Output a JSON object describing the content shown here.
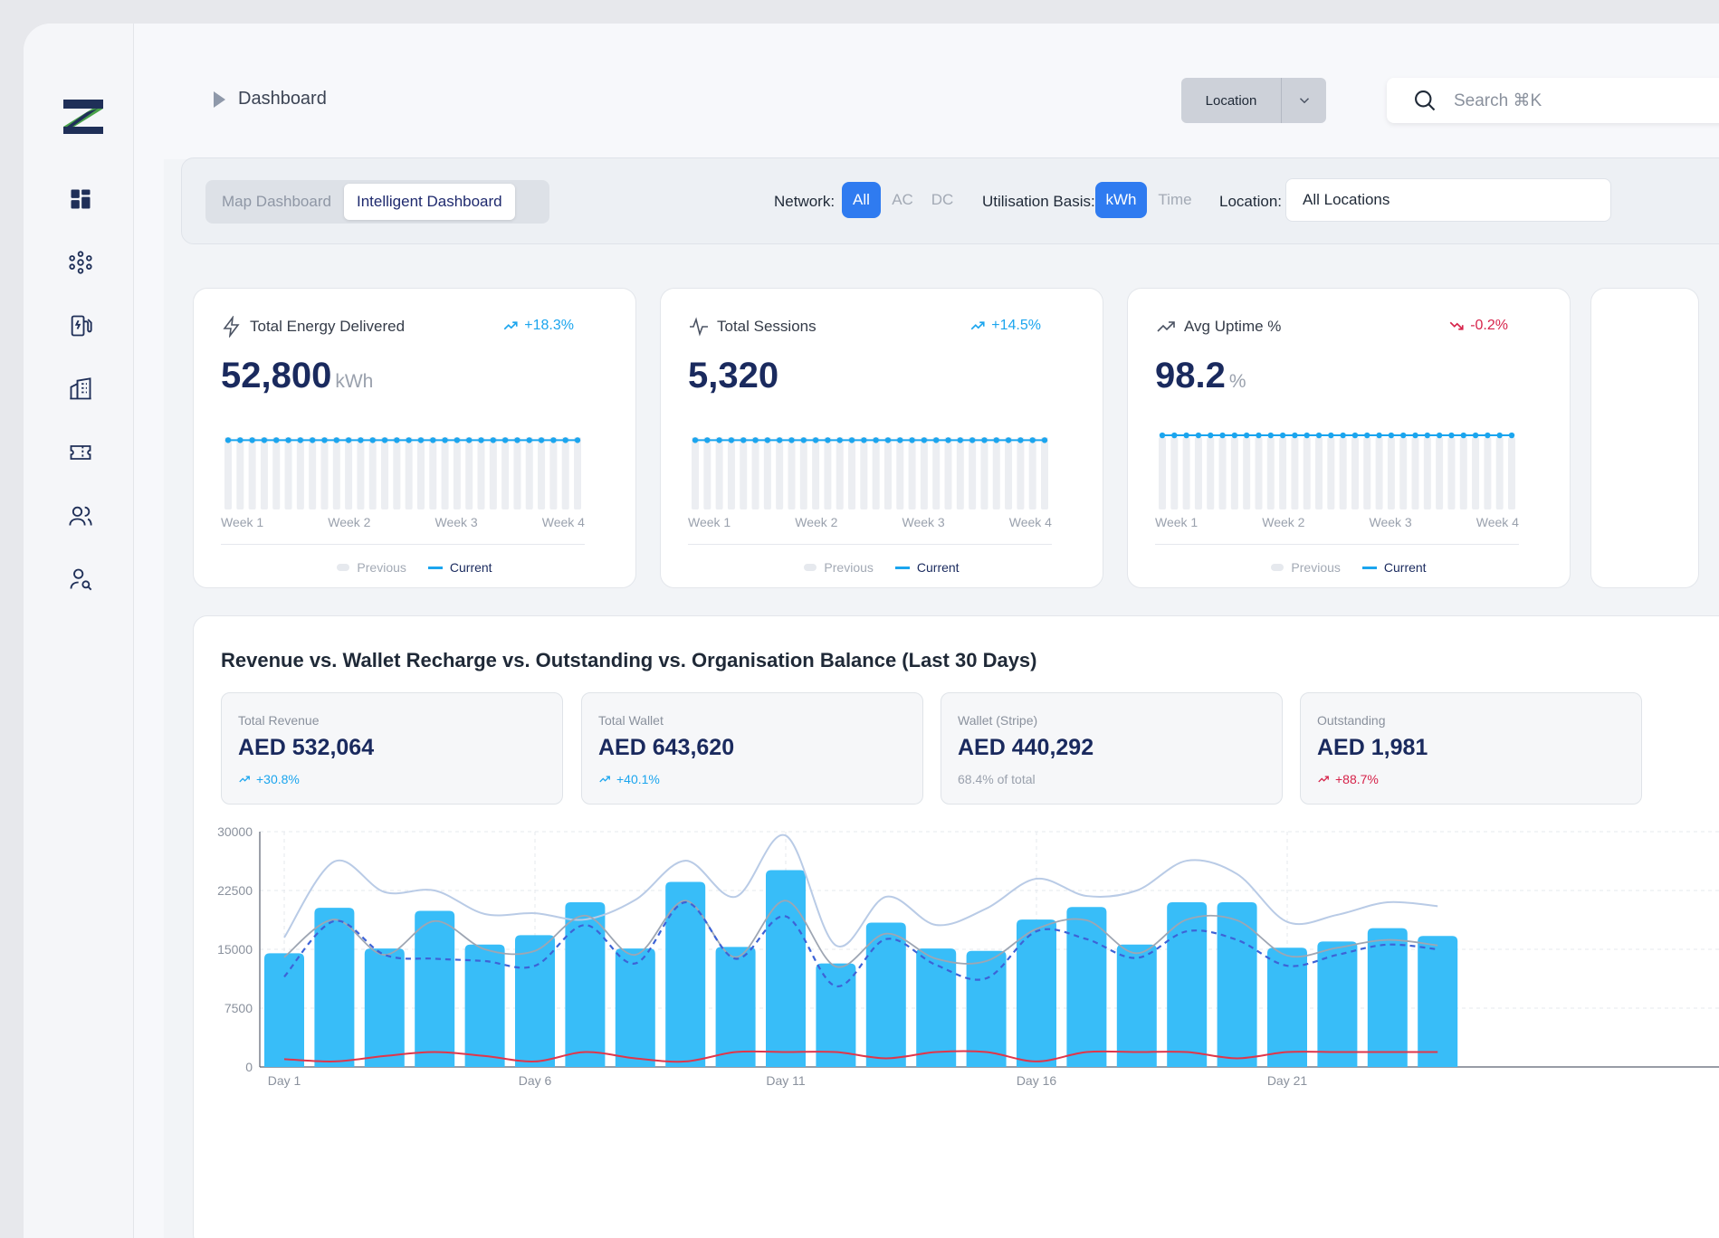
{
  "header": {
    "breadcrumb": "Dashboard",
    "location_label": "Location",
    "search_placeholder": "Search ⌘K"
  },
  "sidebar": {
    "items": [
      {
        "name": "dashboard",
        "icon": "grid-icon"
      },
      {
        "name": "network",
        "icon": "network-icon"
      },
      {
        "name": "chargers",
        "icon": "ev-charger-icon"
      },
      {
        "name": "sites",
        "icon": "building-icon"
      },
      {
        "name": "tickets",
        "icon": "ticket-icon"
      },
      {
        "name": "users",
        "icon": "users-icon"
      },
      {
        "name": "user-search",
        "icon": "user-search-icon"
      }
    ]
  },
  "filters": {
    "tabs": [
      "Map Dashboard",
      "Intelligent Dashboard"
    ],
    "active_tab": "Intelligent Dashboard",
    "network_label": "Network:",
    "network_options": [
      "All",
      "AC",
      "DC"
    ],
    "network_selected": "All",
    "basis_label": "Utilisation Basis:",
    "basis_options": [
      "kWh",
      "Time"
    ],
    "basis_selected": "kWh",
    "location_label": "Location:",
    "location_value": "All Locations"
  },
  "kpis": [
    {
      "title": "Total Energy Delivered",
      "icon": "bolt-icon",
      "change": "+18.3%",
      "trend": "up",
      "value": "52,800",
      "unit": "kWh",
      "level": 0.88
    },
    {
      "title": "Total Sessions",
      "icon": "activity-icon",
      "change": "+14.5%",
      "trend": "up",
      "value": "5,320",
      "unit": "",
      "level": 0.88
    },
    {
      "title": "Avg Uptime %",
      "icon": "trend-up-icon",
      "change": "-0.2%",
      "trend": "down",
      "value": "98.2",
      "unit": "%",
      "level": 0.94
    }
  ],
  "kpi_weeks": [
    "Week 1",
    "Week 2",
    "Week 3",
    "Week 4"
  ],
  "kpi_legend": {
    "previous": "Previous",
    "current": "Current"
  },
  "revenue": {
    "title": "Revenue vs. Wallet Recharge vs. Outstanding vs. Organisation Balance (Last 30 Days)",
    "metrics": [
      {
        "label": "Total Revenue",
        "value": "AED 532,064",
        "sub": "+30.8%",
        "trend": "up"
      },
      {
        "label": "Total Wallet",
        "value": "AED 643,620",
        "sub": "+40.1%",
        "trend": "up"
      },
      {
        "label": "Wallet (Stripe)",
        "value": "AED 440,292",
        "sub": "68.4% of total",
        "trend": "none"
      },
      {
        "label": "Outstanding",
        "value": "AED 1,981",
        "sub": "+88.7%",
        "trend": "up-red"
      }
    ]
  },
  "colors": {
    "accent": "#2f7bf0",
    "navy": "#1a2a5e",
    "bar": "#38bdf8",
    "up": "#1ba5ee",
    "down": "#d6234a"
  },
  "chart_data": {
    "type": "bar",
    "title": "Revenue vs. Wallet Recharge vs. Outstanding vs. Organisation Balance (Last 30 Days)",
    "x": [
      "Day 1",
      "Day 2",
      "Day 3",
      "Day 4",
      "Day 5",
      "Day 6",
      "Day 7",
      "Day 8",
      "Day 9",
      "Day 10",
      "Day 11",
      "Day 12",
      "Day 13",
      "Day 14",
      "Day 15",
      "Day 16",
      "Day 17",
      "Day 18",
      "Day 19",
      "Day 20",
      "Day 21",
      "Day 22",
      "Day 23",
      "Day 24"
    ],
    "x_tick_labels": [
      "Day 1",
      "Day 6",
      "Day 11",
      "Day 16",
      "Day 21"
    ],
    "y_ticks": [
      0,
      7500,
      15000,
      22500,
      30000
    ],
    "ylim": [
      0,
      30000
    ],
    "grid": true,
    "series": [
      {
        "type": "bar",
        "values": [
          14500,
          20300,
          15100,
          19900,
          15600,
          16800,
          21000,
          15100,
          23600,
          15300,
          25100,
          13200,
          18400,
          15100,
          14800,
          18800,
          20400,
          15600,
          21000,
          21000,
          15200,
          16000,
          17700,
          16700
        ]
      },
      {
        "type": "line",
        "style": "light",
        "values": [
          16500,
          26200,
          22300,
          22500,
          19500,
          19600,
          18800,
          21300,
          26300,
          21700,
          29500,
          15500,
          21700,
          18100,
          20200,
          24000,
          21800,
          22500,
          26300,
          24600,
          18500,
          19400,
          21000,
          20500
        ]
      },
      {
        "type": "line",
        "style": "gray",
        "values": [
          14000,
          18800,
          14300,
          18600,
          15000,
          14800,
          19300,
          14300,
          21200,
          14000,
          21200,
          12800,
          17000,
          13800,
          13500,
          17600,
          18700,
          14500,
          18800,
          18700,
          14200,
          15200,
          16200,
          15500
        ]
      },
      {
        "type": "line",
        "style": "dashed",
        "values": [
          11500,
          18600,
          14300,
          13800,
          13500,
          12900,
          18100,
          13200,
          21000,
          13800,
          19200,
          10300,
          16300,
          13000,
          11300,
          17300,
          16300,
          13900,
          17300,
          16200,
          12900,
          14300,
          15600,
          15000
        ]
      },
      {
        "type": "line",
        "style": "red",
        "values": [
          1000,
          700,
          1400,
          1900,
          1400,
          700,
          1900,
          1100,
          700,
          1900,
          1900,
          1900,
          1100,
          1900,
          1900,
          700,
          1900,
          1900,
          1900,
          1100,
          1900,
          1900,
          1900,
          1900
        ]
      }
    ]
  }
}
